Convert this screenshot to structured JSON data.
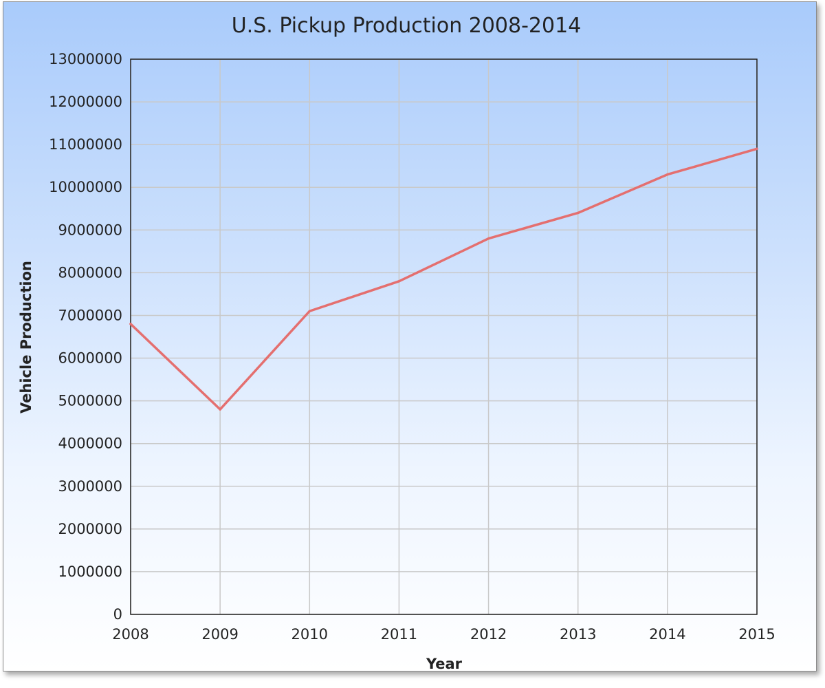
{
  "chart_data": {
    "type": "line",
    "title": "U.S. Pickup Production 2008-2014",
    "xlabel": "Year",
    "ylabel": "Vehicle Production",
    "x": [
      2008,
      2009,
      2010,
      2011,
      2012,
      2013,
      2014,
      2015
    ],
    "xlim": [
      2008,
      2015
    ],
    "ylim": [
      0,
      13000000
    ],
    "y_ticks": [
      0,
      1000000,
      2000000,
      3000000,
      4000000,
      5000000,
      6000000,
      7000000,
      8000000,
      9000000,
      10000000,
      11000000,
      12000000,
      13000000
    ],
    "x_ticks": [
      "2008",
      "2009",
      "2010",
      "2011",
      "2012",
      "2013",
      "2014",
      "2015"
    ],
    "grid": true,
    "legend": "none",
    "series": [
      {
        "name": "Vehicle Production",
        "color": "#e46f6f",
        "values": [
          6800000,
          4800000,
          7100000,
          7800000,
          8800000,
          9400000,
          10300000,
          10900000
        ]
      }
    ]
  },
  "colors": {
    "grid": "#c9c9c9",
    "axis": "#222222",
    "line": "#e46f6f",
    "plot_background": "transparent"
  }
}
